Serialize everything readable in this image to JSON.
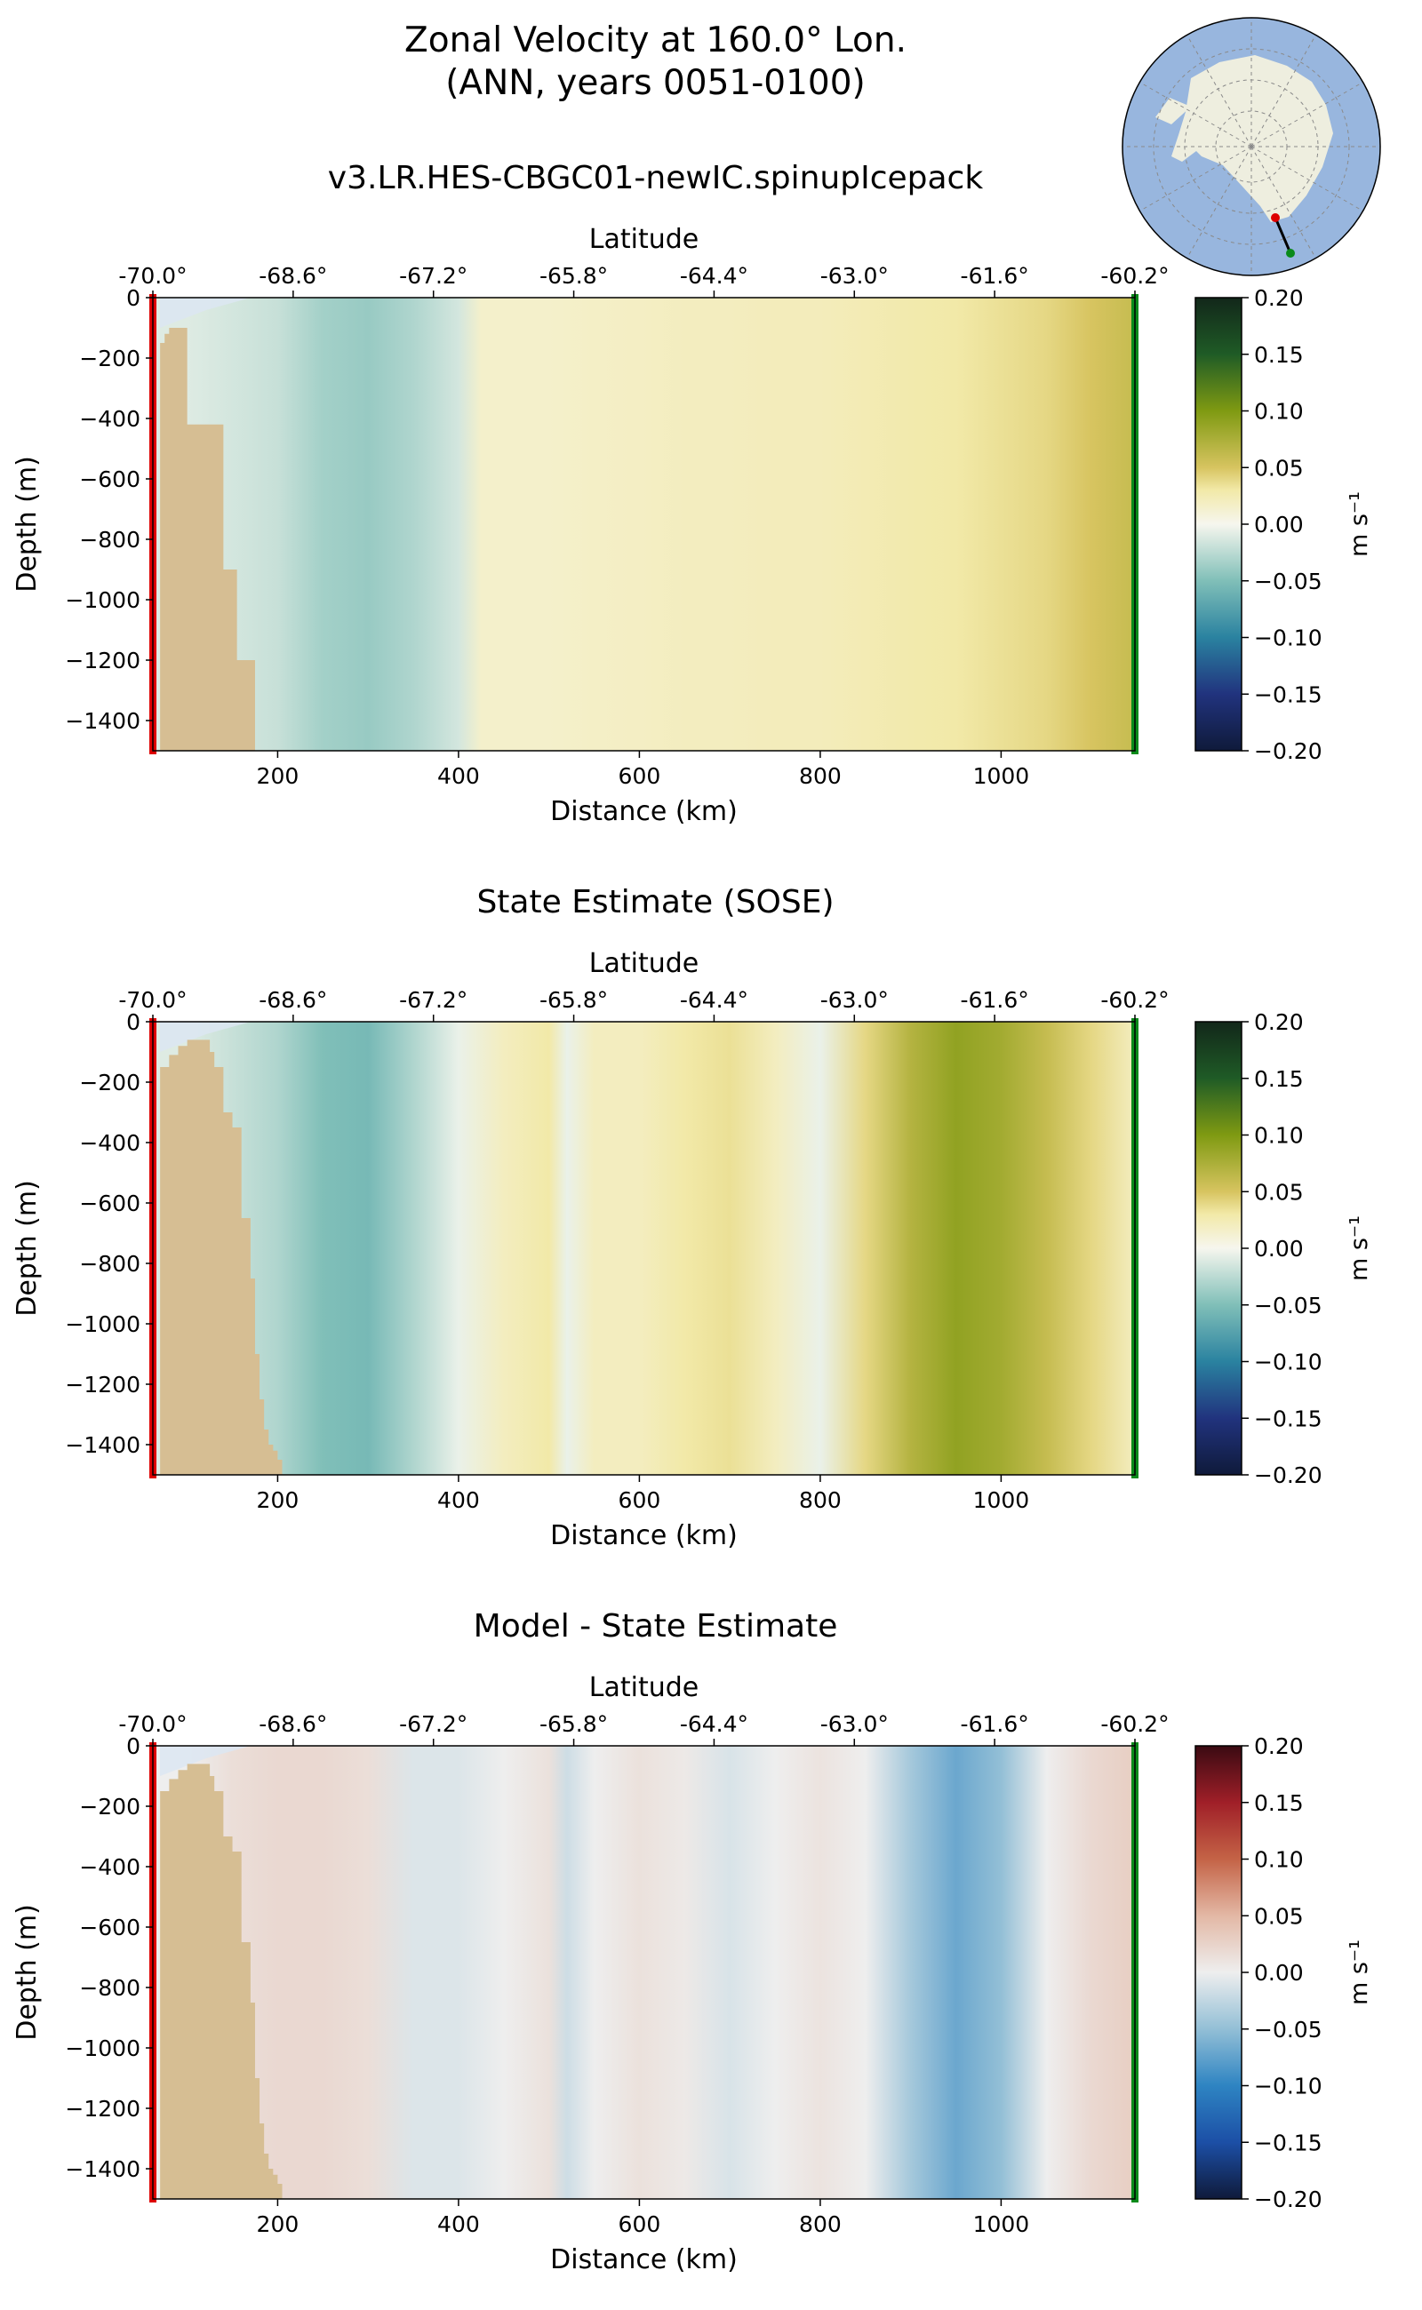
{
  "title": {
    "line1": "Zonal Velocity at 160.0° Lon.",
    "line2": "(ANN, years 0051-0100)"
  },
  "colors": {
    "bathymetry": "#D6BE93",
    "ice_shelf": "#DCE6F2",
    "start_marker": "#DD0000",
    "end_marker": "#0A8A1A",
    "map_ocean": "#98B6DE",
    "map_land": "#EEEEDF"
  },
  "inset_map": {
    "name": "antarctic-polar-map"
  },
  "chart_data": [
    {
      "type": "heatmap",
      "title": "v3.LR.HES-CBGC01-newIC.spinupIcepack",
      "xlabel": "Distance (km)",
      "ylabel": "Depth (m)",
      "top_xlabel": "Latitude",
      "x_ticks": [
        200,
        400,
        600,
        800,
        1000
      ],
      "y_ticks": [
        0,
        -200,
        -400,
        -600,
        -800,
        -1000,
        -1200,
        -1400
      ],
      "y_tick_labels": [
        "0",
        "−200",
        "−400",
        "−600",
        "−800",
        "−1000",
        "−1200",
        "−1400"
      ],
      "lat_tick_labels": [
        "-70.0°",
        "-68.6°",
        "-67.2°",
        "-65.8°",
        "-64.4°",
        "-63.0°",
        "-61.6°",
        "-60.2°"
      ],
      "xlim": [
        62,
        1148
      ],
      "ylim": [
        -1500,
        0
      ],
      "colorbar": {
        "label": "m s⁻¹",
        "colormap": "green-yellow-white-teal-navy",
        "ticks": [
          "0.20",
          "0.15",
          "0.10",
          "0.05",
          "0.00",
          "−0.05",
          "−0.10",
          "−0.15",
          "−0.20"
        ],
        "range": [
          -0.2,
          0.2
        ]
      },
      "bathymetry_km": [
        62,
        70,
        75,
        80,
        85,
        90,
        95,
        100,
        105,
        110,
        115,
        120,
        125,
        130,
        135,
        140,
        145,
        150,
        155,
        160,
        165,
        170,
        175
      ],
      "bathymetry_depth": [
        -1500,
        -150,
        -120,
        -100,
        -100,
        -100,
        -100,
        -420,
        -420,
        -420,
        -420,
        -420,
        -420,
        -420,
        -420,
        -900,
        -900,
        -900,
        -1200,
        -1200,
        -1200,
        -1200,
        -1500
      ],
      "velocity_profile_x_km": [
        100,
        150,
        200,
        250,
        300,
        350,
        400,
        425,
        450,
        500,
        550,
        600,
        650,
        700,
        750,
        800,
        850,
        900,
        950,
        1000,
        1050,
        1100,
        1148
      ],
      "velocity_profile_m_s": [
        -0.01,
        -0.015,
        -0.02,
        -0.035,
        -0.04,
        -0.03,
        -0.015,
        0.015,
        0.015,
        0.015,
        0.017,
        0.018,
        0.02,
        0.02,
        0.022,
        0.022,
        0.025,
        0.028,
        0.03,
        0.035,
        0.04,
        0.05,
        0.06
      ]
    },
    {
      "type": "heatmap",
      "title": "State Estimate (SOSE)",
      "xlabel": "Distance (km)",
      "ylabel": "Depth (m)",
      "top_xlabel": "Latitude",
      "x_ticks": [
        200,
        400,
        600,
        800,
        1000
      ],
      "y_ticks": [
        0,
        -200,
        -400,
        -600,
        -800,
        -1000,
        -1200,
        -1400
      ],
      "y_tick_labels": [
        "0",
        "−200",
        "−400",
        "−600",
        "−800",
        "−1000",
        "−1200",
        "−1400"
      ],
      "lat_tick_labels": [
        "-70.0°",
        "-68.6°",
        "-67.2°",
        "-65.8°",
        "-64.4°",
        "-63.0°",
        "-61.6°",
        "-60.2°"
      ],
      "xlim": [
        62,
        1148
      ],
      "ylim": [
        -1500,
        0
      ],
      "colorbar": {
        "label": "m s⁻¹",
        "colormap": "green-yellow-white-teal-navy",
        "ticks": [
          "0.20",
          "0.15",
          "0.10",
          "0.05",
          "0.00",
          "−0.05",
          "−0.10",
          "−0.15",
          "−0.20"
        ],
        "range": [
          -0.2,
          0.2
        ]
      },
      "bathymetry_km": [
        62,
        70,
        80,
        90,
        100,
        110,
        120,
        125,
        130,
        140,
        150,
        160,
        170,
        175,
        180,
        185,
        190,
        195,
        200,
        205
      ],
      "bathymetry_depth": [
        -1500,
        -150,
        -110,
        -80,
        -60,
        -60,
        -60,
        -100,
        -150,
        -300,
        -350,
        -650,
        -850,
        -1100,
        -1250,
        -1350,
        -1400,
        -1420,
        -1450,
        -1500
      ],
      "velocity_profile_x_km": [
        100,
        150,
        200,
        250,
        300,
        350,
        400,
        450,
        500,
        520,
        550,
        600,
        650,
        700,
        750,
        800,
        850,
        900,
        950,
        1000,
        1050,
        1100,
        1148
      ],
      "velocity_profile_m_s": [
        -0.01,
        -0.02,
        -0.03,
        -0.05,
        -0.055,
        -0.03,
        -0.005,
        0.02,
        0.03,
        -0.005,
        0.02,
        0.02,
        0.03,
        0.035,
        0.02,
        -0.005,
        0.04,
        0.07,
        0.09,
        0.08,
        0.06,
        0.04,
        0.02
      ]
    },
    {
      "type": "heatmap",
      "title": "Model - State Estimate",
      "xlabel": "Distance (km)",
      "ylabel": "Depth (m)",
      "top_xlabel": "Latitude",
      "x_ticks": [
        200,
        400,
        600,
        800,
        1000
      ],
      "y_ticks": [
        0,
        -200,
        -400,
        -600,
        -800,
        -1000,
        -1200,
        -1400
      ],
      "y_tick_labels": [
        "0",
        "−200",
        "−400",
        "−600",
        "−800",
        "−1000",
        "−1200",
        "−1400"
      ],
      "lat_tick_labels": [
        "-70.0°",
        "-68.6°",
        "-67.2°",
        "-65.8°",
        "-64.4°",
        "-63.0°",
        "-61.6°",
        "-60.2°"
      ],
      "xlim": [
        62,
        1148
      ],
      "ylim": [
        -1500,
        0
      ],
      "colorbar": {
        "label": "m s⁻¹",
        "colormap": "red-white-blue",
        "ticks": [
          "0.20",
          "0.15",
          "0.10",
          "0.05",
          "0.00",
          "−0.05",
          "−0.10",
          "−0.15",
          "−0.20"
        ],
        "range": [
          -0.2,
          0.2
        ]
      },
      "bathymetry_km": [
        62,
        70,
        80,
        90,
        100,
        110,
        120,
        125,
        130,
        140,
        150,
        160,
        170,
        175,
        180,
        185,
        190,
        195,
        200,
        205
      ],
      "bathymetry_depth": [
        -1500,
        -150,
        -110,
        -80,
        -60,
        -60,
        -60,
        -100,
        -150,
        -300,
        -350,
        -650,
        -850,
        -1100,
        -1250,
        -1350,
        -1400,
        -1420,
        -1450,
        -1500
      ],
      "velocity_profile_x_km": [
        100,
        150,
        200,
        250,
        300,
        350,
        400,
        450,
        500,
        520,
        550,
        600,
        650,
        700,
        750,
        800,
        850,
        900,
        950,
        1000,
        1050,
        1100,
        1148
      ],
      "velocity_profile_m_s": [
        0.0,
        0.015,
        0.02,
        0.02,
        0.015,
        -0.01,
        -0.01,
        0.0,
        0.012,
        -0.018,
        0.0,
        0.012,
        0.005,
        -0.012,
        0.0,
        0.01,
        0.0,
        -0.04,
        -0.07,
        -0.05,
        0.0,
        0.02,
        0.03
      ]
    }
  ]
}
